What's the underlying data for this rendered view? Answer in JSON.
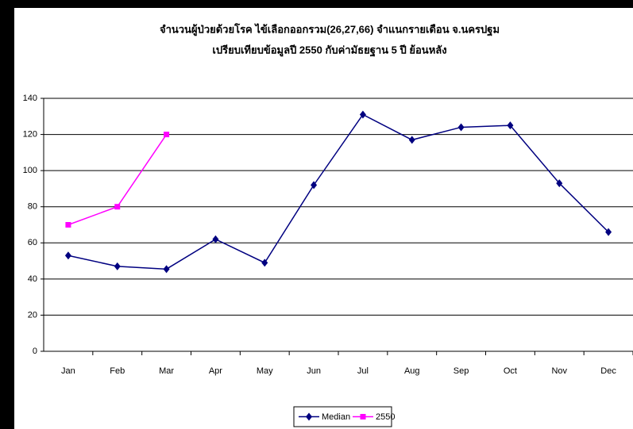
{
  "chart_data": {
    "type": "line",
    "title": "จำนวนผู้ป่วยด้วยโรค  ไข้เลือกออกรวม(26,27,66)  จำแนกรายเดือน   จ.นครปฐม",
    "subtitle": "เปรียบเทียบข้อมูลปี  2550  กับค่ามัธยฐาน 5 ปี ย้อนหลัง",
    "categories": [
      "Jan",
      "Feb",
      "Mar",
      "Apr",
      "May",
      "Jun",
      "Jul",
      "Aug",
      "Sep",
      "Oct",
      "Nov",
      "Dec"
    ],
    "series": [
      {
        "name": "Median",
        "color": "#000080",
        "marker": "diamond",
        "values": [
          53,
          47,
          45.5,
          62,
          49,
          92,
          131,
          117,
          124,
          125,
          93,
          66
        ]
      },
      {
        "name": "2550",
        "color": "#ff00ff",
        "marker": "square",
        "values": [
          70,
          80,
          120,
          null,
          null,
          null,
          null,
          null,
          null,
          null,
          null,
          null
        ]
      }
    ],
    "ylim": [
      0,
      140
    ],
    "yticks": [
      0,
      20,
      40,
      60,
      80,
      100,
      120,
      140
    ],
    "grid": true,
    "legend": "bottom"
  }
}
